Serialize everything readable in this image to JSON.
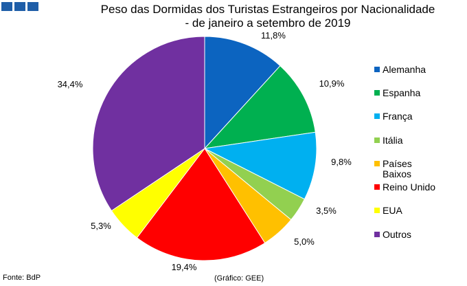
{
  "logo": {
    "icon": "three-blue-squares-icon",
    "color": "#1f5ea8"
  },
  "chart_data": {
    "type": "pie",
    "title": "Peso das Dormidas dos Turistas Estrangeiros por Nacionalidade",
    "subtitle": "- de janeiro a setembro de 2019",
    "unit": "%",
    "start_angle": "12 o'clock",
    "direction": "clockwise",
    "legend_position": "right",
    "slices": [
      {
        "name": "Alemanha",
        "value": 11.8,
        "label": "11,8%",
        "color": "#0c64c0"
      },
      {
        "name": "Espanha",
        "value": 10.9,
        "label": "10,9%",
        "color": "#00b050"
      },
      {
        "name": "França",
        "value": 9.8,
        "label": "9,8%",
        "color": "#00b0f0"
      },
      {
        "name": "Itália",
        "value": 3.5,
        "label": "3,5%",
        "color": "#92d050"
      },
      {
        "name": "Países Baixos",
        "value": 5.0,
        "label": "5,0%",
        "color": "#ffc000"
      },
      {
        "name": "Reino Unido",
        "value": 19.4,
        "label": "19,4%",
        "color": "#ff0000"
      },
      {
        "name": "EUA",
        "value": 5.3,
        "label": "5,3%",
        "color": "#ffff00"
      },
      {
        "name": "Outros",
        "value": 34.4,
        "label": "34,4%",
        "color": "#7030a0"
      }
    ]
  },
  "legend": {
    "items": [
      {
        "label": "Alemanha",
        "color": "#0c64c0"
      },
      {
        "label": "Espanha",
        "color": "#00b050"
      },
      {
        "label": "França",
        "color": "#00b0f0"
      },
      {
        "label": "Itália",
        "color": "#92d050"
      },
      {
        "label": "Países Baixos",
        "color": "#ffc000"
      },
      {
        "label": "Reino Unido",
        "color": "#ff0000"
      },
      {
        "label": "EUA",
        "color": "#ffff00"
      },
      {
        "label": "Outros",
        "color": "#7030a0"
      }
    ]
  },
  "footer": {
    "source": "Fonte: BdP",
    "credit": "(Gráfico: GEE)"
  }
}
